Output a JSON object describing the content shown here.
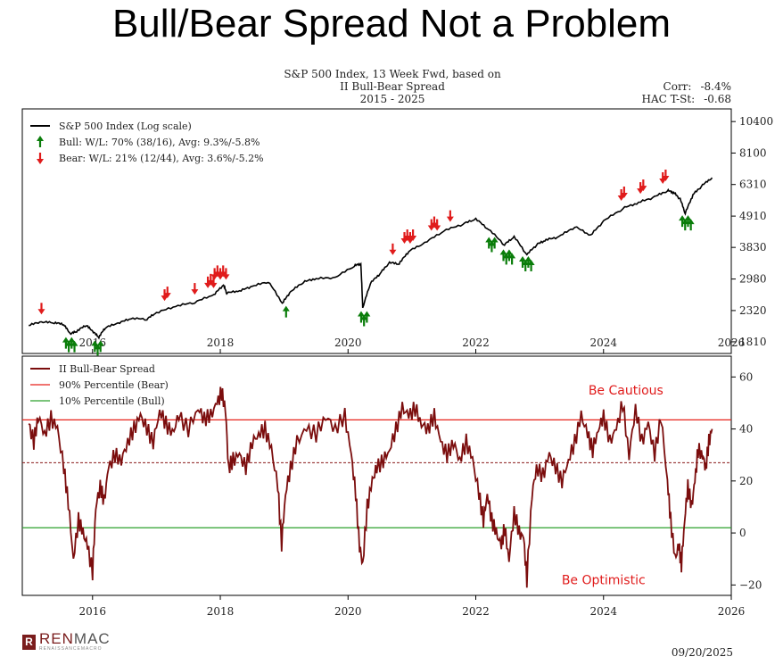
{
  "slide_title": "Bull/Bear Spread Not a Problem",
  "chart_title": [
    "S&P 500 Index, 13 Week Fwd, based on",
    "II Bull-Bear Spread",
    "2015 - 2025"
  ],
  "stats": [
    {
      "label": "Corr:",
      "value": "-8.4%"
    },
    {
      "label": "HAC T-St:",
      "value": "-0.68"
    }
  ],
  "footer": {
    "logo_main": "REN",
    "logo_main2": "MAC",
    "logo_sub": "RENAISSANCEMACRO",
    "logo_mark": "R",
    "date": "09/20/2025"
  },
  "colors": {
    "sp500": "#000000",
    "spread": "#7b0d0d",
    "bear_line": "#e8221b",
    "bull_line": "#2ca02c",
    "bull_arrow": "#0a7d0a",
    "bear_arrow": "#e01b1b",
    "annotation": "#e01b1b"
  },
  "chart_data": [
    {
      "type": "line",
      "title": "S&P 500 Index (Log scale)",
      "scale": "log",
      "x_range": [
        2014.9,
        2026.0
      ],
      "y_range": [
        1650,
        11500
      ],
      "yticks": [
        10400,
        8100,
        6310,
        4910,
        3830,
        2980,
        2320,
        1810
      ],
      "xticks": [
        2016,
        2018,
        2020,
        2022,
        2024,
        2026
      ],
      "legend": [
        {
          "kind": "line",
          "label": "S&P 500 Index (Log scale)"
        },
        {
          "kind": "bull",
          "label": "Bull:  W/L: 70% (38/16), Avg: 9.3%/-5.8%"
        },
        {
          "kind": "bear",
          "label": "Bear:  W/L: 21% (12/44), Avg: 3.6%/-5.2%"
        }
      ],
      "series": {
        "name": "S&P 500",
        "x": [
          2015.0,
          2015.2,
          2015.4,
          2015.55,
          2015.65,
          2015.75,
          2015.9,
          2016.0,
          2016.1,
          2016.2,
          2016.4,
          2016.6,
          2016.85,
          2017.0,
          2017.3,
          2017.6,
          2017.9,
          2018.05,
          2018.1,
          2018.3,
          2018.5,
          2018.75,
          2018.97,
          2019.1,
          2019.3,
          2019.5,
          2019.8,
          2020.1,
          2020.2,
          2020.23,
          2020.35,
          2020.5,
          2020.65,
          2020.8,
          2020.95,
          2021.2,
          2021.5,
          2021.8,
          2022.0,
          2022.2,
          2022.45,
          2022.6,
          2022.8,
          2022.95,
          2023.1,
          2023.3,
          2023.55,
          2023.8,
          2024.0,
          2024.3,
          2024.55,
          2024.8,
          2025.0,
          2025.1,
          2025.2,
          2025.28,
          2025.4,
          2025.55,
          2025.7
        ],
        "values": [
          2060,
          2110,
          2100,
          2070,
          1920,
          1960,
          2060,
          1960,
          1870,
          2020,
          2090,
          2170,
          2160,
          2270,
          2390,
          2470,
          2620,
          2830,
          2660,
          2700,
          2800,
          2910,
          2450,
          2680,
          2900,
          2980,
          3000,
          3300,
          3350,
          2350,
          2870,
          3100,
          3380,
          3350,
          3700,
          3950,
          4350,
          4600,
          4780,
          4400,
          3900,
          4150,
          3600,
          3900,
          4050,
          4150,
          4500,
          4200,
          4700,
          5200,
          5450,
          5700,
          6000,
          5900,
          5600,
          5000,
          5800,
          6250,
          6660
        ]
      },
      "bull_signals": [
        {
          "x": 2015.65,
          "y": 1920,
          "count": 4
        },
        {
          "x": 2016.08,
          "y": 1870,
          "count": 3
        },
        {
          "x": 2019.03,
          "y": 2460,
          "count": 1
        },
        {
          "x": 2020.25,
          "y": 2360,
          "count": 3
        },
        {
          "x": 2022.25,
          "y": 4250,
          "count": 3
        },
        {
          "x": 2022.5,
          "y": 3850,
          "count": 4
        },
        {
          "x": 2022.8,
          "y": 3650,
          "count": 4
        },
        {
          "x": 2025.3,
          "y": 5050,
          "count": 4
        }
      ],
      "bear_signals": [
        {
          "x": 2015.2,
          "y": 2110,
          "count": 1
        },
        {
          "x": 2017.15,
          "y": 2350,
          "count": 2
        },
        {
          "x": 2017.6,
          "y": 2470,
          "count": 1
        },
        {
          "x": 2017.85,
          "y": 2600,
          "count": 3
        },
        {
          "x": 2018.0,
          "y": 2780,
          "count": 5
        },
        {
          "x": 2020.7,
          "y": 3380,
          "count": 1
        },
        {
          "x": 2020.95,
          "y": 3700,
          "count": 4
        },
        {
          "x": 2021.35,
          "y": 4100,
          "count": 3
        },
        {
          "x": 2021.6,
          "y": 4400,
          "count": 1
        },
        {
          "x": 2024.3,
          "y": 5200,
          "count": 2
        },
        {
          "x": 2024.6,
          "y": 5500,
          "count": 2
        },
        {
          "x": 2024.95,
          "y": 5950,
          "count": 2
        }
      ]
    },
    {
      "type": "line",
      "title": "II Bull-Bear Spread",
      "x_range": [
        2014.9,
        2026.0
      ],
      "y_range": [
        -24,
        68
      ],
      "yticks": [
        60,
        40,
        20,
        0,
        -20
      ],
      "xticks": [
        2016,
        2018,
        2020,
        2022,
        2024,
        2026
      ],
      "legend": [
        {
          "kind": "spread",
          "label": "II Bull-Bear Spread"
        },
        {
          "kind": "bear_line",
          "label": "90% Percentile (Bear)"
        },
        {
          "kind": "bull_line",
          "label": "10% Percentile (Bull)"
        }
      ],
      "thresholds": {
        "bear_90pct": 43.5,
        "bull_10pct": 2.0,
        "mean": 27.0
      },
      "annotations": [
        {
          "text": "Be Cautious",
          "x": 2024.35,
          "y": 55
        },
        {
          "text": "Be Optimistic",
          "x": 2024.0,
          "y": -18
        }
      ],
      "series": {
        "name": "II Bull-Bear Spread",
        "x": [
          2015.0,
          2015.08,
          2015.15,
          2015.25,
          2015.35,
          2015.45,
          2015.55,
          2015.62,
          2015.7,
          2015.78,
          2015.85,
          2015.92,
          2016.0,
          2016.05,
          2016.12,
          2016.18,
          2016.25,
          2016.35,
          2016.45,
          2016.55,
          2016.65,
          2016.75,
          2016.85,
          2016.95,
          2017.05,
          2017.15,
          2017.25,
          2017.35,
          2017.5,
          2017.65,
          2017.75,
          2017.85,
          2017.95,
          2018.02,
          2018.08,
          2018.13,
          2018.2,
          2018.3,
          2018.4,
          2018.5,
          2018.6,
          2018.7,
          2018.8,
          2018.9,
          2018.96,
          2019.02,
          2019.1,
          2019.2,
          2019.35,
          2019.5,
          2019.65,
          2019.8,
          2019.95,
          2020.05,
          2020.12,
          2020.18,
          2020.23,
          2020.3,
          2020.38,
          2020.45,
          2020.55,
          2020.65,
          2020.75,
          2020.85,
          2020.95,
          2021.05,
          2021.15,
          2021.25,
          2021.35,
          2021.45,
          2021.55,
          2021.65,
          2021.75,
          2021.85,
          2021.95,
          2022.05,
          2022.12,
          2022.18,
          2022.25,
          2022.32,
          2022.4,
          2022.45,
          2022.52,
          2022.6,
          2022.68,
          2022.75,
          2022.8,
          2022.88,
          2022.95,
          2023.05,
          2023.15,
          2023.25,
          2023.35,
          2023.45,
          2023.55,
          2023.65,
          2023.75,
          2023.83,
          2023.92,
          2024.0,
          2024.1,
          2024.2,
          2024.3,
          2024.4,
          2024.5,
          2024.6,
          2024.7,
          2024.8,
          2024.9,
          2025.0,
          2025.05,
          2025.12,
          2025.18,
          2025.22,
          2025.27,
          2025.32,
          2025.38,
          2025.43,
          2025.48,
          2025.55,
          2025.6,
          2025.65,
          2025.7
        ],
        "values": [
          42,
          35,
          45,
          38,
          44,
          40,
          25,
          12,
          -10,
          5,
          0,
          -5,
          -15,
          10,
          18,
          12,
          25,
          30,
          28,
          35,
          40,
          45,
          40,
          35,
          47,
          42,
          38,
          45,
          40,
          48,
          44,
          45,
          50,
          54,
          48,
          25,
          28,
          30,
          25,
          35,
          38,
          40,
          32,
          18,
          -4,
          15,
          25,
          35,
          40,
          38,
          45,
          40,
          45,
          30,
          15,
          -5,
          -12,
          10,
          20,
          25,
          28,
          32,
          40,
          48,
          45,
          48,
          42,
          40,
          45,
          35,
          30,
          35,
          28,
          35,
          28,
          15,
          5,
          15,
          5,
          0,
          -5,
          2,
          -10,
          8,
          0,
          -2,
          -18,
          15,
          25,
          22,
          30,
          25,
          20,
          28,
          35,
          45,
          38,
          32,
          40,
          45,
          35,
          40,
          50,
          30,
          48,
          35,
          42,
          30,
          45,
          20,
          5,
          -10,
          -5,
          -12,
          5,
          18,
          10,
          20,
          32,
          30,
          25,
          35,
          40
        ]
      }
    }
  ]
}
